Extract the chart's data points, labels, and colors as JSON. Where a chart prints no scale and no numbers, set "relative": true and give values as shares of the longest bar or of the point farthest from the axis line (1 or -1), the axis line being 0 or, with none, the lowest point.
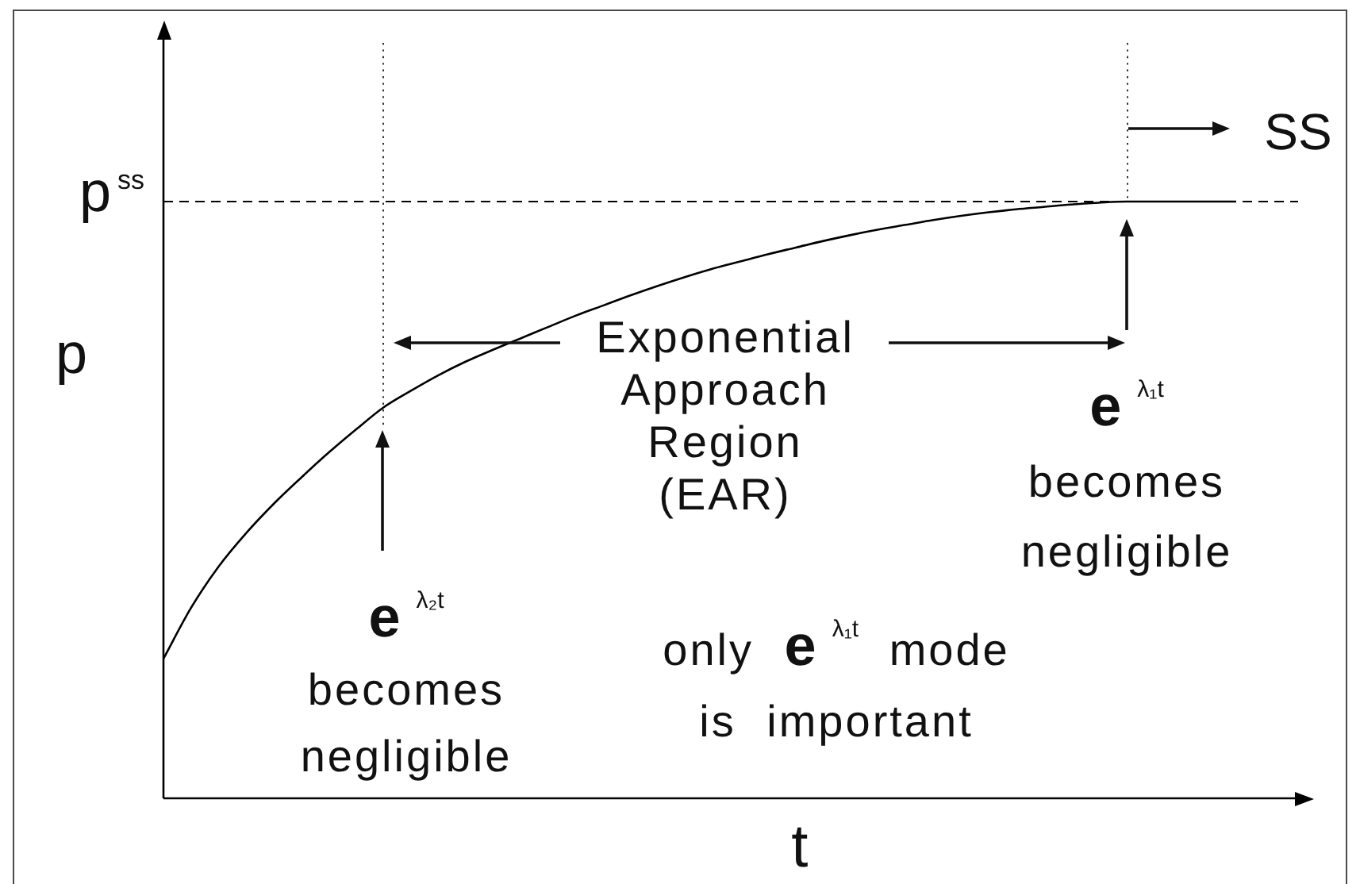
{
  "chart_data": {
    "type": "line",
    "xlabel": "t",
    "ylabel": "p",
    "relative": true,
    "marker": "none",
    "color": "#000000",
    "categories": [
      null,
      null,
      null,
      null,
      null,
      null,
      null,
      null,
      null,
      null,
      null,
      null,
      null,
      null,
      null,
      null,
      null,
      null,
      null,
      null,
      null,
      null,
      null,
      null,
      null,
      null,
      null,
      null,
      null,
      null,
      null,
      null,
      null,
      null,
      null,
      null,
      null,
      null,
      null,
      null
    ],
    "values": [
      0.234,
      0.319,
      0.388,
      0.444,
      0.493,
      0.537,
      0.579,
      0.618,
      0.655,
      0.683,
      0.709,
      0.732,
      0.752,
      0.771,
      0.79,
      0.809,
      0.826,
      0.843,
      0.859,
      0.874,
      0.888,
      0.9,
      0.912,
      0.923,
      0.934,
      0.944,
      0.953,
      0.961,
      0.969,
      0.976,
      0.982,
      0.987,
      0.991,
      0.995,
      0.998,
      1,
      1,
      1,
      1,
      1
    ],
    "ref_lines": [
      {
        "axis": "y",
        "value": 1,
        "label": "p$^{ss}$",
        "line_style": "dashed",
        "color": "#000000"
      }
    ],
    "annotations": [
      "Exponential\nApproach\nRegion\n(EAR)",
      "e$^{λ₂t}$\nbecomes\nnegligible",
      "e$^{λ₁t}$\nbecomes\nnegligible",
      "only e$^{λ₁t}$ mode\nis important",
      "SS"
    ]
  }
}
